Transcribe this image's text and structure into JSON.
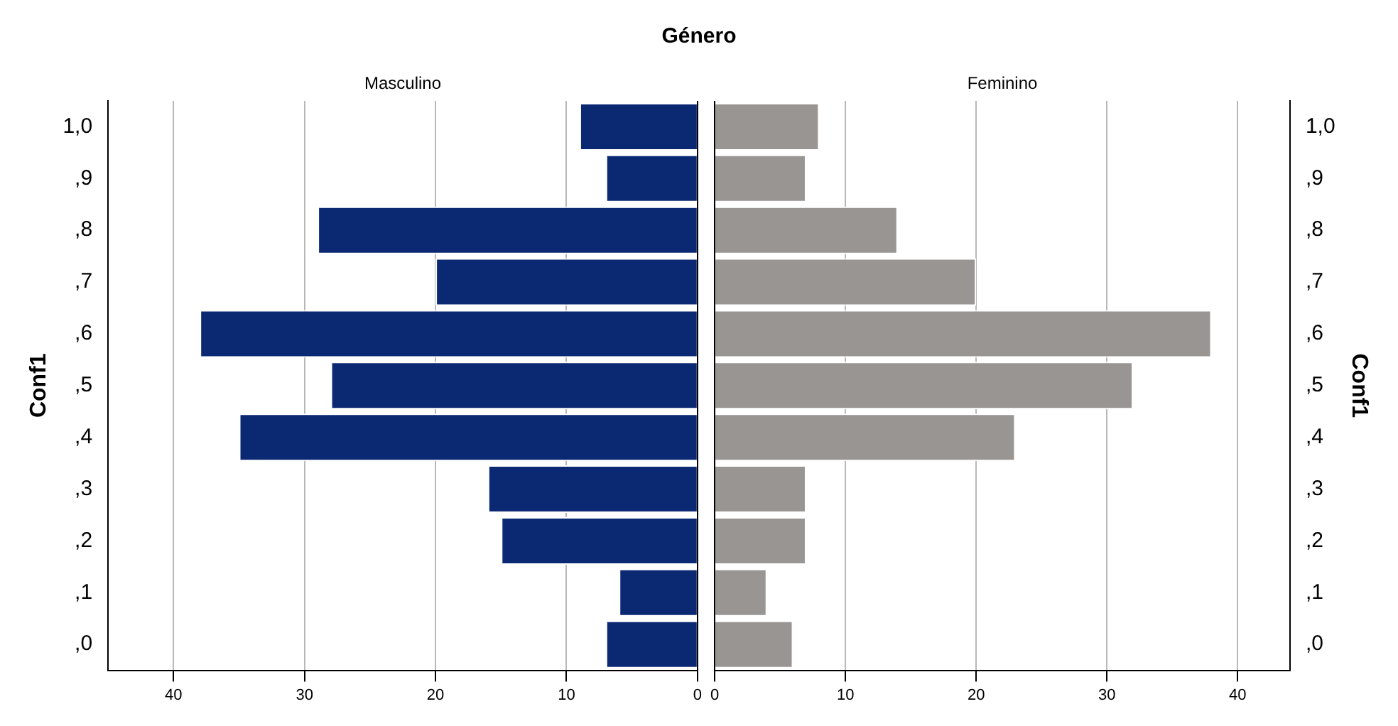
{
  "chart_data": [
    {
      "type": "bar",
      "orientation": "horizontal",
      "title": "Género",
      "ylabel": "Conf1",
      "categories": [
        "1,0",
        ",9",
        ",8",
        ",7",
        ",6",
        ",5",
        ",4",
        ",3",
        ",2",
        ",1",
        ",0"
      ],
      "series": [
        {
          "name": "Masculino",
          "color": "#0b2873",
          "values": [
            9,
            7,
            29,
            20,
            38,
            28,
            35,
            16,
            15,
            6,
            7
          ]
        }
      ],
      "xlim": [
        45,
        0
      ],
      "xticks": [
        40,
        30,
        20,
        10,
        0
      ],
      "grid": "x",
      "legend": false
    },
    {
      "type": "bar",
      "orientation": "horizontal",
      "y2label": "Conf1",
      "categories": [
        "1,0",
        ",9",
        ",8",
        ",7",
        ",6",
        ",5",
        ",4",
        ",3",
        ",2",
        ",1",
        ",0"
      ],
      "series": [
        {
          "name": "Feminino",
          "color": "#999593",
          "values": [
            8,
            7,
            14,
            20,
            38,
            32,
            23,
            7,
            7,
            4,
            6
          ]
        }
      ],
      "xlim": [
        0,
        44
      ],
      "xticks": [
        0,
        10,
        20,
        30,
        40
      ],
      "grid": "x",
      "legend": false
    }
  ]
}
